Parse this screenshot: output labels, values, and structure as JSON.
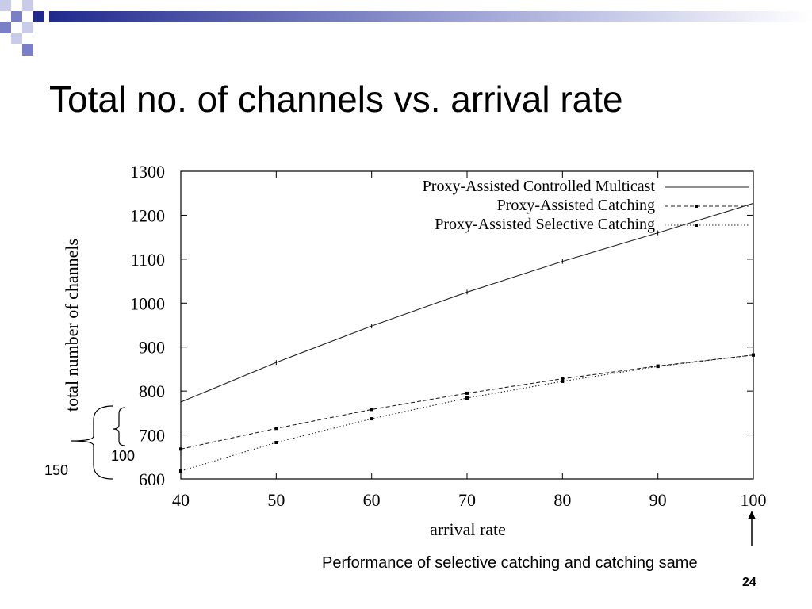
{
  "slide": {
    "title": "Total no. of channels vs. arrival rate",
    "slide_number": "24",
    "annotation_text": "Performance of selective catching and catching same",
    "bracket_outer_label": "150",
    "bracket_inner_label": "100",
    "decor_colors": [
      "#1f2a8c",
      "#7a80c8",
      "#c9cce8"
    ]
  },
  "chart_data": {
    "type": "line",
    "xlabel": "arrival rate",
    "ylabel": "total number of channels",
    "xlim": [
      40,
      100
    ],
    "ylim": [
      600,
      1300
    ],
    "xticks": [
      40,
      50,
      60,
      70,
      80,
      90,
      100
    ],
    "yticks": [
      600,
      700,
      800,
      900,
      1000,
      1100,
      1200,
      1300
    ],
    "grid": false,
    "legend_position": "top-right",
    "series": [
      {
        "name": "Proxy-Assisted Controlled Multicast",
        "style": "solid",
        "x": [
          40,
          50,
          60,
          70,
          80,
          90,
          100
        ],
        "y": [
          775,
          865,
          948,
          1025,
          1095,
          1160,
          1227
        ]
      },
      {
        "name": "Proxy-Assisted Catching",
        "style": "dashed",
        "x": [
          40,
          50,
          60,
          70,
          80,
          90,
          100
        ],
        "y": [
          668,
          715,
          758,
          795,
          828,
          857,
          882
        ]
      },
      {
        "name": "Proxy-Assisted Selective Catching",
        "style": "dotted",
        "x": [
          40,
          50,
          60,
          70,
          80,
          90,
          100
        ],
        "y": [
          618,
          683,
          737,
          784,
          822,
          856,
          882
        ]
      }
    ]
  }
}
